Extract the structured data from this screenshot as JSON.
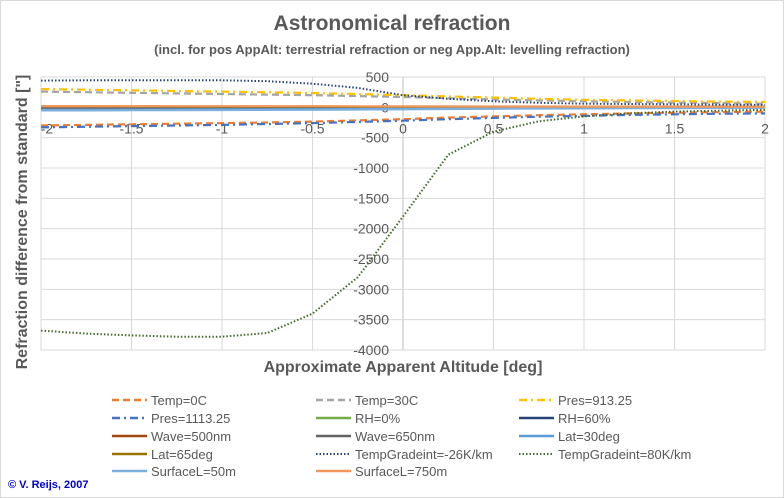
{
  "chart_data": {
    "type": "line",
    "title": "Astronomical refraction",
    "subtitle": "(incl. for pos AppAlt: terrestrial refraction or neg App.Alt: levelling refraction)",
    "xlabel": "Approximate Apparent Altitude [deg]",
    "ylabel": "Refraction difference from standard [\"]",
    "xlim": [
      -2,
      2
    ],
    "ylim": [
      -4000,
      500
    ],
    "xticks": [
      -2,
      -1.5,
      -1,
      -0.5,
      0,
      0.5,
      1,
      1.5,
      2
    ],
    "yticks": [
      500,
      0,
      -500,
      -1000,
      -1500,
      -2000,
      -2500,
      -3000,
      -3500,
      -4000
    ],
    "grid": true,
    "legend": "bottom",
    "x": [
      -2,
      -1.75,
      -1.5,
      -1.25,
      -1,
      -0.75,
      -0.5,
      -0.25,
      0,
      0.25,
      0.5,
      0.75,
      1,
      1.25,
      1.5,
      1.75,
      2
    ],
    "series": [
      {
        "name": "Temp=0C",
        "color": "#ED7D31",
        "style": "dash",
        "values": [
          -300,
          -290,
          -280,
          -270,
          -260,
          -250,
          -235,
          -215,
          -195,
          -170,
          -150,
          -130,
          -115,
          -100,
          -90,
          -80,
          -70
        ]
      },
      {
        "name": "Temp=30C",
        "color": "#A5A5A5",
        "style": "dash",
        "values": [
          260,
          250,
          240,
          230,
          220,
          210,
          200,
          185,
          170,
          150,
          130,
          115,
          100,
          90,
          80,
          70,
          60
        ]
      },
      {
        "name": "Pres=913.25",
        "color": "#FFC000",
        "style": "dashdot",
        "values": [
          300,
          290,
          280,
          270,
          260,
          250,
          235,
          220,
          200,
          180,
          160,
          140,
          125,
          115,
          105,
          95,
          90
        ]
      },
      {
        "name": "Pres=1113.25",
        "color": "#4472C4",
        "style": "dashdot",
        "values": [
          -330,
          -320,
          -310,
          -300,
          -290,
          -275,
          -260,
          -240,
          -220,
          -195,
          -175,
          -155,
          -140,
          -125,
          -115,
          -105,
          -100
        ]
      },
      {
        "name": "RH=0%",
        "color": "#70AD47",
        "style": "solid",
        "values": [
          5,
          5,
          5,
          5,
          5,
          5,
          5,
          5,
          5,
          5,
          5,
          5,
          5,
          5,
          5,
          5,
          5
        ]
      },
      {
        "name": "RH=60%",
        "color": "#264478",
        "style": "solid",
        "values": [
          -5,
          -5,
          -5,
          -5,
          -5,
          -5,
          -5,
          -5,
          -5,
          -5,
          -5,
          -5,
          -5,
          -5,
          -5,
          -5,
          -5
        ]
      },
      {
        "name": "Wave=500nm",
        "color": "#9E480E",
        "style": "solid",
        "values": [
          10,
          10,
          10,
          10,
          10,
          10,
          10,
          10,
          10,
          10,
          10,
          10,
          10,
          10,
          10,
          10,
          10
        ]
      },
      {
        "name": "Wave=650nm",
        "color": "#636363",
        "style": "solid",
        "values": [
          -5,
          -5,
          -5,
          -5,
          -5,
          -5,
          -5,
          -5,
          -5,
          -5,
          -5,
          -5,
          -5,
          -5,
          -5,
          -5,
          -5
        ]
      },
      {
        "name": "Lat=30deg",
        "color": "#5B9BD5",
        "style": "solid",
        "values": [
          -40,
          -40,
          -38,
          -36,
          -34,
          -32,
          -30,
          -27,
          -24,
          -20,
          -17,
          -14,
          -12,
          -10,
          -9,
          -8,
          -7
        ]
      },
      {
        "name": "Lat=65deg",
        "color": "#997300",
        "style": "solid",
        "values": [
          15,
          15,
          15,
          14,
          14,
          13,
          13,
          12,
          11,
          10,
          9,
          8,
          7,
          6,
          6,
          5,
          5
        ]
      },
      {
        "name": "TempGradeint=-26K/km",
        "color": "#264478",
        "style": "dot",
        "values": [
          440,
          445,
          448,
          448,
          445,
          430,
          390,
          320,
          200,
          140,
          100,
          75,
          60,
          55,
          50,
          45,
          40
        ]
      },
      {
        "name": "TempGradeint=80K/km",
        "color": "#43682B",
        "style": "dot",
        "values": [
          -3680,
          -3730,
          -3760,
          -3780,
          -3780,
          -3720,
          -3400,
          -2800,
          -1800,
          -780,
          -400,
          -230,
          -150,
          -100,
          -70,
          -55,
          -40
        ]
      },
      {
        "name": "SurfaceL=50m",
        "color": "#7CAFDD",
        "style": "solid",
        "values": [
          -50,
          -50,
          -48,
          -46,
          -44,
          -42,
          -40,
          -36,
          -32,
          -28,
          -24,
          -20,
          -17,
          -15,
          -13,
          -11,
          -10
        ]
      },
      {
        "name": "SurfaceL=750m",
        "color": "#F1975A",
        "style": "solid",
        "values": [
          20,
          20,
          20,
          19,
          19,
          18,
          18,
          17,
          16,
          15,
          14,
          13,
          12,
          11,
          10,
          9,
          8
        ]
      }
    ]
  },
  "copyright": "© V. Reijs, 2007"
}
